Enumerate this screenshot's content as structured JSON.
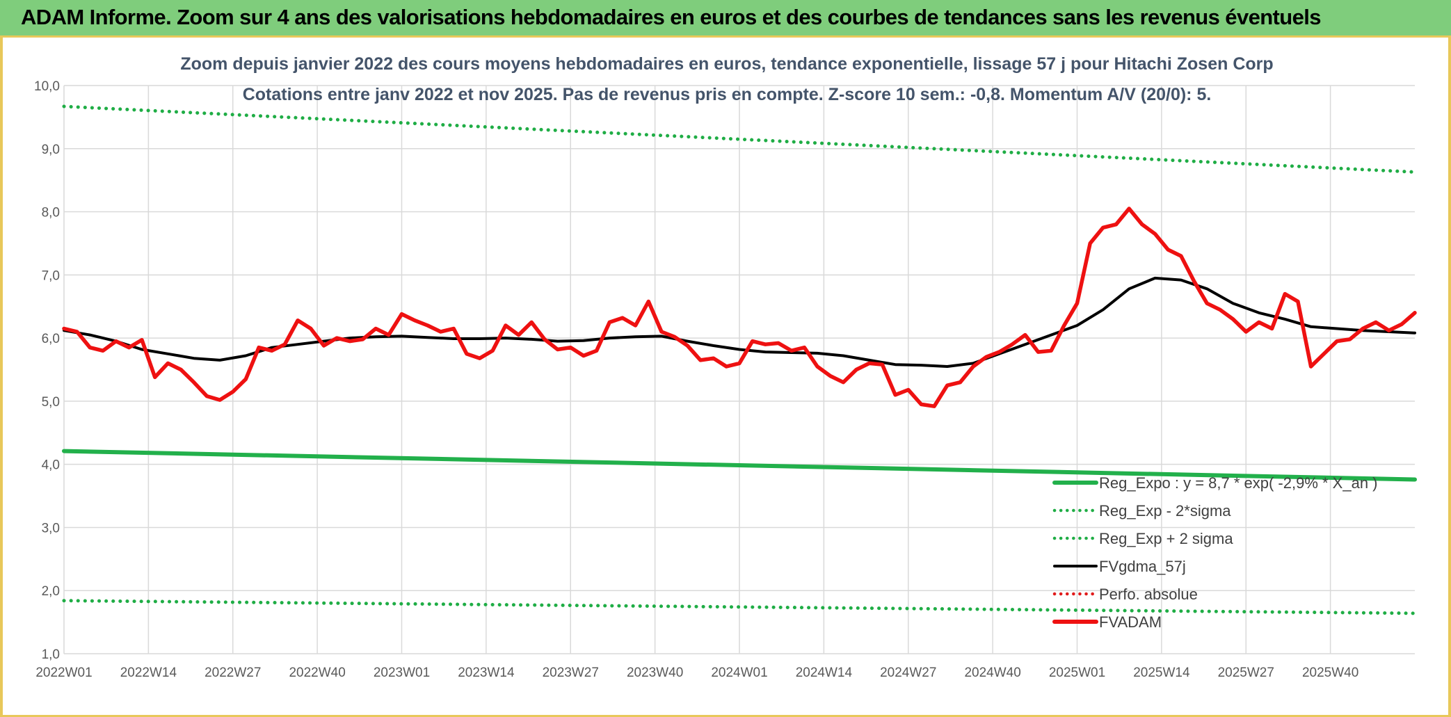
{
  "header": {
    "title": "ADAM Informe. Zoom sur 4 ans des valorisations hebdomadaires en euros et des courbes de tendances sans les revenus éventuels"
  },
  "colors": {
    "banner": "#7fcd7c",
    "accent": "#e8c85a",
    "reg_expo": "#22b04b",
    "sigma": "#1fad45",
    "fvgdma": "#000000",
    "perfo": "#e01b1b",
    "fvadam": "#ee1111",
    "grid": "#d9d9d9",
    "subtitle": "#44546a"
  },
  "chart_data": {
    "type": "line",
    "title": "Zoom depuis janvier 2022 des cours moyens hebdomadaires en euros, tendance exponentielle, lissage 57 j pour Hitachi Zosen Corp",
    "subtitle": "Cotations entre janv 2022 et nov 2025. Pas de revenus pris en compte. Z-score 10 sem.: -0,8. Momentum A/V (20/0): 5.",
    "xlabel": "",
    "ylabel": "",
    "ylim": [
      1.0,
      10.0
    ],
    "yticks": [
      "1,0",
      "2,0",
      "3,0",
      "4,0",
      "5,0",
      "6,0",
      "7,0",
      "8,0",
      "9,0",
      "10,0"
    ],
    "x_tick_labels": [
      "2022W01",
      "2022W14",
      "2022W27",
      "2022W40",
      "2023W01",
      "2023W14",
      "2023W27",
      "2023W40",
      "2024W01",
      "2024W14",
      "2024W27",
      "2024W40",
      "2025W01",
      "2025W14",
      "2025W27",
      "2025W40"
    ],
    "x_count": 209,
    "grid": true,
    "legend_position": "bottom-right",
    "series": [
      {
        "name": "Reg_Expo : y = 8,7 * exp( -2,9% * X_an )",
        "style": "solid-thick",
        "color": "#22b04b",
        "points": [
          [
            0,
            4.21
          ],
          [
            208,
            3.76
          ]
        ]
      },
      {
        "name": "Reg_Exp - 2*sigma",
        "style": "dotted",
        "color": "#1fad45",
        "points": [
          [
            0,
            1.84
          ],
          [
            208,
            1.64
          ]
        ]
      },
      {
        "name": "Reg_Exp + 2 sigma",
        "style": "dotted",
        "color": "#1fad45",
        "points": [
          [
            0,
            9.67
          ],
          [
            208,
            8.63
          ]
        ]
      },
      {
        "name": "FVgdma_57j",
        "style": "solid",
        "color": "#000000",
        "points": [
          [
            0,
            6.12
          ],
          [
            4,
            6.05
          ],
          [
            8,
            5.95
          ],
          [
            12,
            5.82
          ],
          [
            16,
            5.75
          ],
          [
            20,
            5.68
          ],
          [
            24,
            5.65
          ],
          [
            28,
            5.72
          ],
          [
            32,
            5.85
          ],
          [
            36,
            5.9
          ],
          [
            40,
            5.95
          ],
          [
            44,
            6.0
          ],
          [
            48,
            6.02
          ],
          [
            52,
            6.03
          ],
          [
            56,
            6.01
          ],
          [
            60,
            5.99
          ],
          [
            64,
            5.99
          ],
          [
            68,
            6.0
          ],
          [
            72,
            5.98
          ],
          [
            76,
            5.95
          ],
          [
            80,
            5.96
          ],
          [
            84,
            6.0
          ],
          [
            88,
            6.02
          ],
          [
            92,
            6.03
          ],
          [
            96,
            5.95
          ],
          [
            100,
            5.88
          ],
          [
            104,
            5.82
          ],
          [
            108,
            5.78
          ],
          [
            112,
            5.77
          ],
          [
            116,
            5.76
          ],
          [
            120,
            5.72
          ],
          [
            124,
            5.65
          ],
          [
            128,
            5.58
          ],
          [
            132,
            5.57
          ],
          [
            136,
            5.55
          ],
          [
            140,
            5.6
          ],
          [
            144,
            5.75
          ],
          [
            148,
            5.9
          ],
          [
            152,
            6.05
          ],
          [
            156,
            6.2
          ],
          [
            160,
            6.45
          ],
          [
            164,
            6.78
          ],
          [
            168,
            6.95
          ],
          [
            172,
            6.92
          ],
          [
            176,
            6.78
          ],
          [
            180,
            6.55
          ],
          [
            184,
            6.4
          ],
          [
            188,
            6.3
          ],
          [
            192,
            6.18
          ],
          [
            196,
            6.15
          ],
          [
            200,
            6.12
          ],
          [
            204,
            6.1
          ],
          [
            208,
            6.08
          ]
        ]
      },
      {
        "name": "Perfo. absolue",
        "style": "dotted",
        "color": "#e01b1b",
        "points": []
      },
      {
        "name": "FVADAM",
        "style": "solid-thick",
        "color": "#ee1111",
        "points": [
          [
            0,
            6.15
          ],
          [
            2,
            6.1
          ],
          [
            4,
            5.85
          ],
          [
            6,
            5.8
          ],
          [
            8,
            5.95
          ],
          [
            10,
            5.85
          ],
          [
            12,
            5.97
          ],
          [
            14,
            5.38
          ],
          [
            16,
            5.6
          ],
          [
            18,
            5.5
          ],
          [
            20,
            5.3
          ],
          [
            22,
            5.08
          ],
          [
            24,
            5.02
          ],
          [
            26,
            5.15
          ],
          [
            28,
            5.35
          ],
          [
            30,
            5.85
          ],
          [
            32,
            5.8
          ],
          [
            34,
            5.9
          ],
          [
            36,
            6.28
          ],
          [
            38,
            6.15
          ],
          [
            40,
            5.88
          ],
          [
            42,
            6.0
          ],
          [
            44,
            5.95
          ],
          [
            46,
            5.98
          ],
          [
            48,
            6.15
          ],
          [
            50,
            6.05
          ],
          [
            52,
            6.38
          ],
          [
            54,
            6.28
          ],
          [
            56,
            6.2
          ],
          [
            58,
            6.1
          ],
          [
            60,
            6.15
          ],
          [
            62,
            5.75
          ],
          [
            64,
            5.68
          ],
          [
            66,
            5.8
          ],
          [
            68,
            6.2
          ],
          [
            70,
            6.05
          ],
          [
            72,
            6.25
          ],
          [
            74,
            5.98
          ],
          [
            76,
            5.82
          ],
          [
            78,
            5.85
          ],
          [
            80,
            5.72
          ],
          [
            82,
            5.8
          ],
          [
            84,
            6.25
          ],
          [
            86,
            6.32
          ],
          [
            88,
            6.2
          ],
          [
            90,
            6.58
          ],
          [
            92,
            6.1
          ],
          [
            94,
            6.02
          ],
          [
            96,
            5.88
          ],
          [
            98,
            5.65
          ],
          [
            100,
            5.68
          ],
          [
            102,
            5.55
          ],
          [
            104,
            5.6
          ],
          [
            106,
            5.95
          ],
          [
            108,
            5.9
          ],
          [
            110,
            5.92
          ],
          [
            112,
            5.8
          ],
          [
            114,
            5.85
          ],
          [
            116,
            5.55
          ],
          [
            118,
            5.4
          ],
          [
            120,
            5.3
          ],
          [
            122,
            5.5
          ],
          [
            124,
            5.6
          ],
          [
            126,
            5.58
          ],
          [
            128,
            5.1
          ],
          [
            130,
            5.18
          ],
          [
            132,
            4.95
          ],
          [
            134,
            4.92
          ],
          [
            136,
            5.25
          ],
          [
            138,
            5.3
          ],
          [
            140,
            5.55
          ],
          [
            142,
            5.7
          ],
          [
            144,
            5.78
          ],
          [
            146,
            5.9
          ],
          [
            148,
            6.05
          ],
          [
            150,
            5.78
          ],
          [
            152,
            5.8
          ],
          [
            154,
            6.2
          ],
          [
            156,
            6.55
          ],
          [
            158,
            7.5
          ],
          [
            160,
            7.75
          ],
          [
            162,
            7.8
          ],
          [
            164,
            8.05
          ],
          [
            166,
            7.8
          ],
          [
            168,
            7.65
          ],
          [
            170,
            7.4
          ],
          [
            172,
            7.3
          ],
          [
            174,
            6.9
          ],
          [
            176,
            6.55
          ],
          [
            178,
            6.45
          ],
          [
            180,
            6.3
          ],
          [
            182,
            6.1
          ],
          [
            184,
            6.25
          ],
          [
            186,
            6.15
          ],
          [
            188,
            6.7
          ],
          [
            190,
            6.58
          ],
          [
            192,
            5.55
          ],
          [
            194,
            5.75
          ],
          [
            196,
            5.95
          ],
          [
            198,
            5.98
          ],
          [
            200,
            6.15
          ],
          [
            202,
            6.25
          ],
          [
            204,
            6.12
          ],
          [
            206,
            6.22
          ],
          [
            208,
            6.4
          ]
        ]
      }
    ]
  },
  "legend": {
    "entries": [
      "Reg_Expo : y = 8,7 * exp( -2,9% *  X_an )",
      "Reg_Exp - 2*sigma",
      "Reg_Exp + 2 sigma",
      "FVgdma_57j",
      "Perfo. absolue",
      "FVADAM"
    ]
  }
}
